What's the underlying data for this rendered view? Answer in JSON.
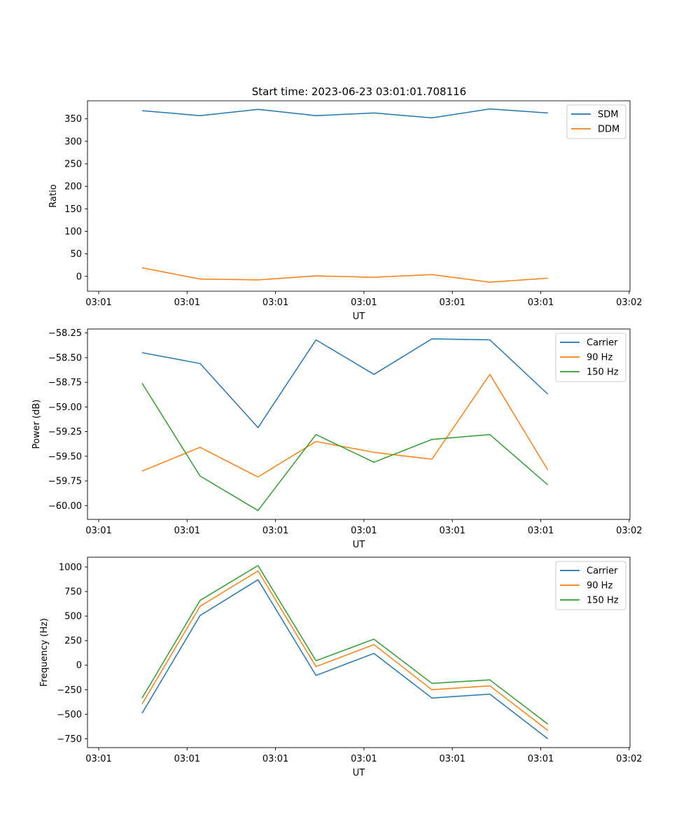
{
  "figure": {
    "title": "Start time: 2023-06-23 03:01:01.708116"
  },
  "chart_data": [
    {
      "type": "line",
      "id": "ratio",
      "xlabel": "UT",
      "ylabel": "Ratio",
      "x_tick_labels": [
        "03:01",
        "03:01",
        "03:01",
        "03:01",
        "03:01",
        "03:01",
        "03:02"
      ],
      "y_ticks": [
        0,
        50,
        100,
        150,
        200,
        250,
        300,
        350
      ],
      "y_tick_labels": [
        "0",
        "50",
        "100",
        "150",
        "200",
        "250",
        "300",
        "350"
      ],
      "ylim": [
        -33,
        390
      ],
      "legend_position": "top-right",
      "grid": false,
      "series": [
        {
          "name": "SDM",
          "color": "#1f77b4",
          "values": [
            368,
            357,
            371,
            357,
            363,
            352,
            372,
            363
          ]
        },
        {
          "name": "DDM",
          "color": "#ff7f0e",
          "values": [
            19,
            -6,
            -8,
            1,
            -2,
            4,
            -13,
            -4
          ]
        }
      ]
    },
    {
      "type": "line",
      "id": "power",
      "xlabel": "UT",
      "ylabel": "Power (dB)",
      "x_tick_labels": [
        "03:01",
        "03:01",
        "03:01",
        "03:01",
        "03:01",
        "03:01",
        "03:02"
      ],
      "y_ticks": [
        -60.0,
        -59.75,
        -59.5,
        -59.25,
        -59.0,
        -58.75,
        -58.5,
        -58.25
      ],
      "y_tick_labels": [
        "−60.00",
        "−59.75",
        "−59.50",
        "−59.25",
        "−59.00",
        "−58.75",
        "−58.50",
        "−58.25"
      ],
      "ylim": [
        -60.14,
        -58.21
      ],
      "legend_position": "top-right",
      "grid": false,
      "series": [
        {
          "name": "Carrier",
          "color": "#1f77b4",
          "values": [
            -58.45,
            -58.56,
            -59.21,
            -58.32,
            -58.67,
            -58.31,
            -58.32,
            -58.87
          ]
        },
        {
          "name": "90 Hz",
          "color": "#ff7f0e",
          "values": [
            -59.65,
            -59.41,
            -59.71,
            -59.35,
            -59.46,
            -59.53,
            -58.67,
            -59.64
          ]
        },
        {
          "name": "150 Hz",
          "color": "#2ca02c",
          "values": [
            -58.76,
            -59.7,
            -60.05,
            -59.28,
            -59.56,
            -59.33,
            -59.28,
            -59.79
          ]
        }
      ]
    },
    {
      "type": "line",
      "id": "frequency",
      "xlabel": "UT",
      "ylabel": "Frequency (Hz)",
      "x_tick_labels": [
        "03:01",
        "03:01",
        "03:01",
        "03:01",
        "03:01",
        "03:01",
        "03:02"
      ],
      "y_ticks": [
        -750,
        -500,
        -250,
        0,
        250,
        500,
        750,
        1000
      ],
      "y_tick_labels": [
        "−750",
        "−500",
        "−250",
        "0",
        "250",
        "500",
        "750",
        "1000"
      ],
      "ylim": [
        -840,
        1100
      ],
      "legend_position": "top-right",
      "grid": false,
      "series": [
        {
          "name": "Carrier",
          "color": "#1f77b4",
          "values": [
            -490,
            505,
            870,
            -105,
            120,
            -335,
            -295,
            -750
          ]
        },
        {
          "name": "90 Hz",
          "color": "#ff7f0e",
          "values": [
            -395,
            600,
            960,
            -15,
            210,
            -250,
            -210,
            -665
          ]
        },
        {
          "name": "150 Hz",
          "color": "#2ca02c",
          "values": [
            -335,
            660,
            1015,
            45,
            265,
            -185,
            -150,
            -600
          ]
        }
      ]
    }
  ]
}
